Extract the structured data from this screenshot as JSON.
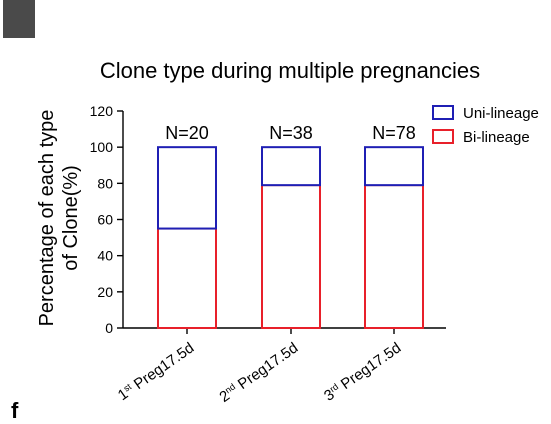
{
  "panel_label": "f",
  "chart_data": {
    "type": "bar",
    "stacked": true,
    "title": "Clone type during multiple pregnancies",
    "ylabel_lines": [
      "Percentage of each type",
      "of Clone(%)"
    ],
    "xlabel": "",
    "ylim": [
      0,
      120
    ],
    "yticks": [
      0,
      20,
      40,
      60,
      80,
      100,
      120
    ],
    "categories": [
      {
        "sup": "st",
        "base": "1",
        "rest": " Preg17.5d"
      },
      {
        "sup": "nd",
        "base": "2",
        "rest": " Preg17.5d"
      },
      {
        "sup": "rd",
        "base": "3",
        "rest": " Preg17.5d"
      }
    ],
    "annotations": [
      "N=20",
      "N=38",
      "N=78"
    ],
    "series": [
      {
        "name": "Bi-lineage",
        "color": "#e8202a",
        "values": [
          55,
          79,
          79
        ]
      },
      {
        "name": "Uni-lineage",
        "color": "#1f1fb4",
        "values": [
          45,
          21,
          21
        ]
      }
    ],
    "legend_order": [
      "Uni-lineage",
      "Bi-lineage"
    ],
    "legend_position": "top-right",
    "grid": false
  }
}
